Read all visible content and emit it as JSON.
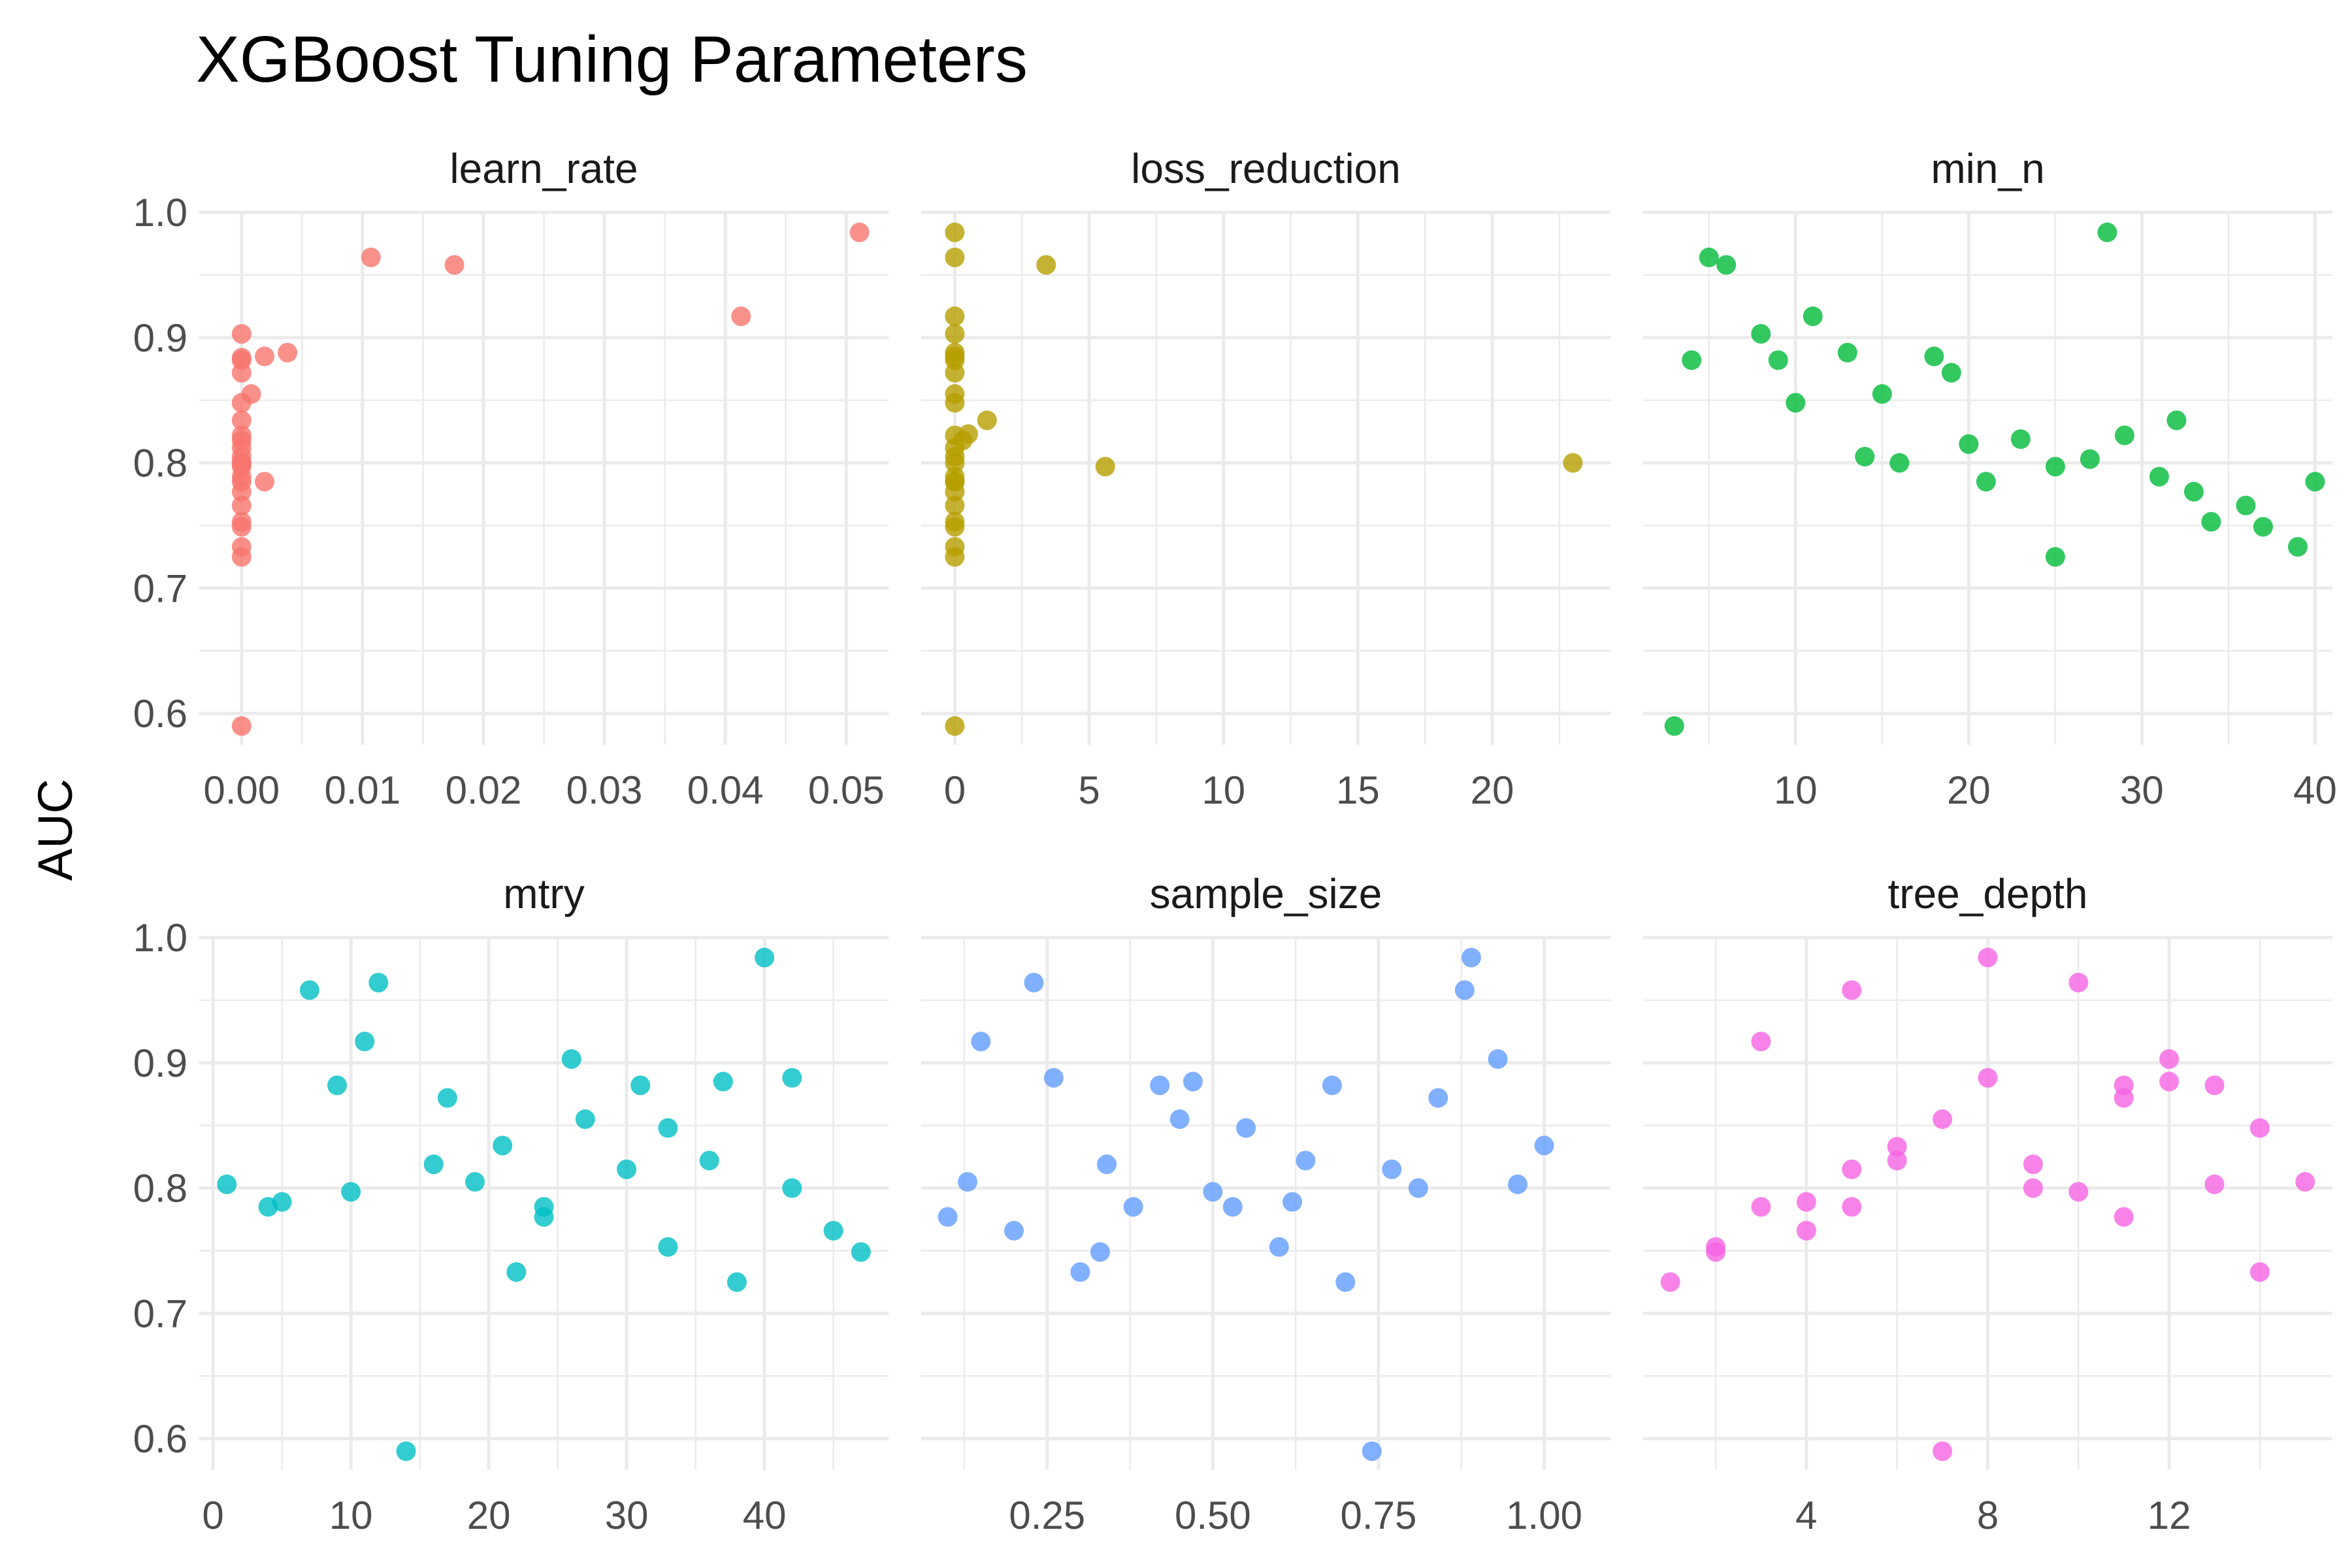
{
  "chart_data": {
    "type": "scatter",
    "title": "XGBoost Tuning Parameters",
    "ylabel": "AUC",
    "ylim": [
      0.575,
      1.0
    ],
    "yticks": [
      0.6,
      0.7,
      0.8,
      0.9,
      1.0
    ],
    "ytick_labels": [
      "0.6",
      "0.7",
      "0.8",
      "0.9",
      "1.0"
    ],
    "grid": true,
    "legend": "none",
    "panels": [
      {
        "name": "learn_rate",
        "color": "#F8766D",
        "xlim": [
          -0.0035,
          0.0535
        ],
        "xticks": [
          0,
          0.01,
          0.02,
          0.03,
          0.04,
          0.05
        ],
        "xtick_labels": [
          "0.00",
          "0.01",
          "0.02",
          "0.03",
          "0.04",
          "0.05"
        ],
        "x": [
          0.0511,
          0.0107,
          0.0176,
          0.0413,
          0.0,
          0.0,
          0.0,
          0.0038,
          0.0019,
          0.0,
          0.0008,
          0.0,
          0.0,
          0.0,
          0.0,
          0.0,
          0.0,
          0.0,
          0.0019,
          0.0,
          0.0,
          0.0,
          0.0,
          0.0,
          0.0,
          0.0,
          0.0,
          0.0,
          0.0,
          0.0
        ],
        "y": [
          0.984,
          0.964,
          0.958,
          0.917,
          0.903,
          0.884,
          0.882,
          0.888,
          0.885,
          0.872,
          0.855,
          0.848,
          0.834,
          0.822,
          0.818,
          0.812,
          0.805,
          0.8,
          0.785,
          0.8,
          0.797,
          0.789,
          0.785,
          0.777,
          0.766,
          0.753,
          0.749,
          0.733,
          0.725,
          0.59
        ]
      },
      {
        "name": "loss_reduction",
        "color": "#B79F00",
        "xlim": [
          -1.25,
          24.4
        ],
        "xticks": [
          0,
          5,
          10,
          15,
          20
        ],
        "xtick_labels": [
          "0",
          "5",
          "10",
          "15",
          "20"
        ],
        "x": [
          0.0,
          0.0,
          3.4,
          0.0,
          0.0,
          0.0,
          0.0,
          0.0,
          0.0,
          0.0,
          0.0,
          1.2,
          0.5,
          0.3,
          0.0,
          0.0,
          0.0,
          5.6,
          23.0,
          0.0,
          0.0,
          0.0,
          0.0,
          0.0,
          0.0,
          0.0,
          0.0,
          0.0,
          0.0,
          0.0
        ],
        "y": [
          0.984,
          0.964,
          0.958,
          0.917,
          0.903,
          0.888,
          0.885,
          0.882,
          0.872,
          0.855,
          0.848,
          0.834,
          0.823,
          0.818,
          0.822,
          0.812,
          0.805,
          0.797,
          0.8,
          0.8,
          0.789,
          0.785,
          0.777,
          0.766,
          0.753,
          0.749,
          0.733,
          0.725,
          0.59,
          0.785
        ]
      },
      {
        "name": "min_n",
        "color": "#00BA38",
        "xlim": [
          1.2,
          41.0
        ],
        "xticks": [
          10,
          20,
          30,
          40
        ],
        "xtick_labels": [
          "10",
          "20",
          "30",
          "40"
        ],
        "x": [
          5,
          6,
          4,
          8,
          9,
          10,
          11,
          13,
          14,
          15,
          16,
          18,
          19,
          20,
          21,
          23,
          25,
          25,
          27,
          28,
          29,
          31,
          32,
          33,
          34,
          36,
          37,
          39,
          40,
          3
        ],
        "y": [
          0.964,
          0.958,
          0.882,
          0.903,
          0.882,
          0.848,
          0.917,
          0.888,
          0.805,
          0.855,
          0.8,
          0.885,
          0.872,
          0.815,
          0.785,
          0.819,
          0.797,
          0.725,
          0.803,
          0.984,
          0.822,
          0.789,
          0.834,
          0.777,
          0.753,
          0.766,
          0.749,
          0.733,
          0.785,
          0.59
        ]
      },
      {
        "name": "mtry",
        "color": "#00BFC4",
        "xlim": [
          -1.0,
          49.0
        ],
        "xticks": [
          0,
          10,
          20,
          30,
          40
        ],
        "xtick_labels": [
          "0",
          "10",
          "20",
          "30",
          "40"
        ],
        "x": [
          1,
          4,
          5,
          7,
          9,
          10,
          11,
          12,
          14,
          16,
          17,
          19,
          21,
          22,
          24,
          24,
          26,
          27,
          30,
          31,
          33,
          33,
          36,
          37,
          38,
          40,
          42,
          42,
          45,
          47
        ],
        "y": [
          0.803,
          0.785,
          0.789,
          0.958,
          0.882,
          0.797,
          0.917,
          0.964,
          0.59,
          0.819,
          0.872,
          0.805,
          0.834,
          0.733,
          0.785,
          0.777,
          0.903,
          0.855,
          0.815,
          0.882,
          0.848,
          0.753,
          0.822,
          0.885,
          0.725,
          0.984,
          0.888,
          0.8,
          0.766,
          0.749
        ]
      },
      {
        "name": "sample_size",
        "color": "#619CFF",
        "xlim": [
          0.06,
          1.1
        ],
        "xticks": [
          0.25,
          0.5,
          0.75,
          1.0
        ],
        "xtick_labels": [
          "0.25",
          "0.50",
          "0.75",
          "1.00"
        ],
        "x": [
          0.1,
          0.13,
          0.15,
          0.2,
          0.23,
          0.26,
          0.3,
          0.33,
          0.34,
          0.38,
          0.42,
          0.45,
          0.47,
          0.5,
          0.53,
          0.55,
          0.6,
          0.62,
          0.64,
          0.68,
          0.7,
          0.74,
          0.77,
          0.81,
          0.84,
          0.88,
          0.89,
          0.93,
          0.96,
          1.0
        ],
        "y": [
          0.777,
          0.805,
          0.917,
          0.766,
          0.964,
          0.888,
          0.733,
          0.749,
          0.819,
          0.785,
          0.882,
          0.855,
          0.885,
          0.797,
          0.785,
          0.848,
          0.753,
          0.789,
          0.822,
          0.882,
          0.725,
          0.59,
          0.815,
          0.8,
          0.872,
          0.958,
          0.984,
          0.903,
          0.803,
          0.834
        ]
      },
      {
        "name": "tree_depth",
        "color": "#F564E3",
        "xlim": [
          0.4,
          15.6
        ],
        "xticks": [
          4,
          8,
          12
        ],
        "xtick_labels": [
          "4",
          "8",
          "12"
        ],
        "x": [
          1,
          2,
          2,
          3,
          3,
          4,
          4,
          5,
          5,
          5,
          6,
          6,
          7,
          7,
          8,
          8,
          9,
          9,
          10,
          10,
          11,
          11,
          11,
          12,
          12,
          13,
          13,
          14,
          14,
          15
        ],
        "y": [
          0.725,
          0.753,
          0.749,
          0.917,
          0.785,
          0.789,
          0.766,
          0.958,
          0.815,
          0.785,
          0.833,
          0.822,
          0.855,
          0.59,
          0.984,
          0.888,
          0.819,
          0.8,
          0.964,
          0.797,
          0.882,
          0.872,
          0.777,
          0.903,
          0.885,
          0.882,
          0.803,
          0.848,
          0.733,
          0.805
        ]
      }
    ]
  }
}
